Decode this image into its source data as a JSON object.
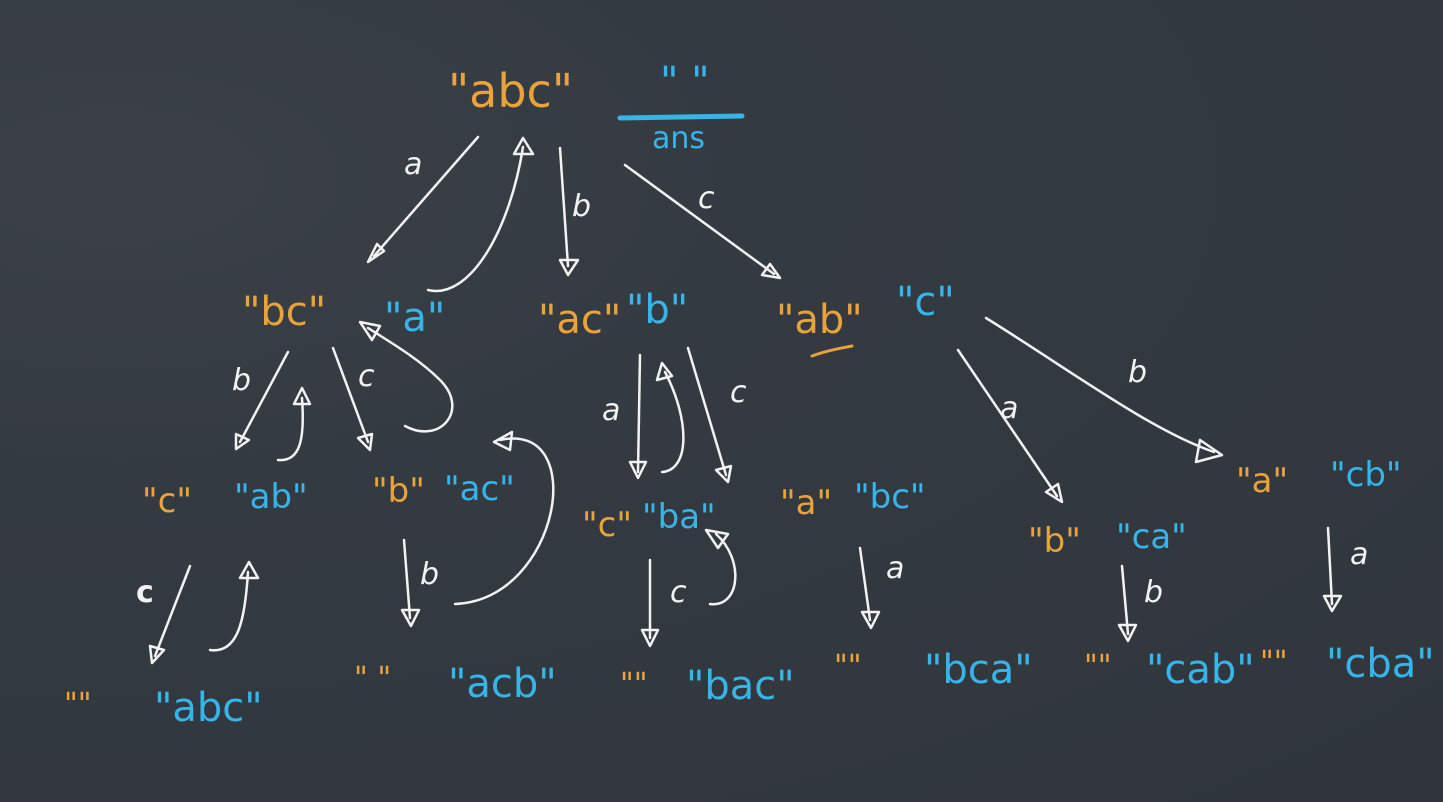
{
  "nodes": {
    "root_remaining": "\"abc\"",
    "root_ans": "\" \"",
    "root_ans_label": "ans",
    "l1_a_rem": "\"bc\"",
    "l1_a_ans": "\"a\"",
    "l1_b_rem": "\"ac\"",
    "l1_b_ans": "\"b\"",
    "l1_c_rem": "\"ab\"",
    "l1_c_ans": "\"c\"",
    "l2_ab_rem": "\"c\"",
    "l2_ab_ans": "\"ab\"",
    "l2_ac_rem": "\"b\"",
    "l2_ac_ans": "\"ac\"",
    "l2_ba_rem": "\"c\"",
    "l2_ba_ans": "\"ba\"",
    "l2_bc_rem": "\"a\"",
    "l2_bc_ans": "\"bc\"",
    "l2_ca_rem": "\"b\"",
    "l2_ca_ans": "\"ca\"",
    "l2_cb_rem": "\"a\"",
    "l2_cb_ans": "\"cb\"",
    "l3_1_rem": "\"\"",
    "l3_1_ans": "\"abc\"",
    "l3_2_rem": "\" \"",
    "l3_2_ans": "\"acb\"",
    "l3_3_rem": "\"\"",
    "l3_3_ans": "\"bac\"",
    "l3_4_rem": "\"\"",
    "l3_4_ans": "\"bca\"",
    "l3_5_rem": "\"\"",
    "l3_5_ans": "\"cab\"",
    "l3_6_rem": "\"\"",
    "l3_6_ans": "\"cba\""
  },
  "edge_labels": {
    "root_a": "a",
    "root_b": "b",
    "root_c": "c",
    "bc_b": "b",
    "bc_c": "c",
    "ac_a": "a",
    "ac_c": "c",
    "ab_a": "a",
    "ab_b": "b",
    "ab_l2_c": "c",
    "ac_l2_b": "b",
    "ba_l2_c": "c",
    "bc_l2_a": "a",
    "ca_l2_b": "b",
    "cb_l2_a": "a"
  },
  "colors": {
    "background": "#343a41",
    "remaining": "#e8a33c",
    "answer": "#37b4e8",
    "arrows": "#f2f2f2"
  }
}
